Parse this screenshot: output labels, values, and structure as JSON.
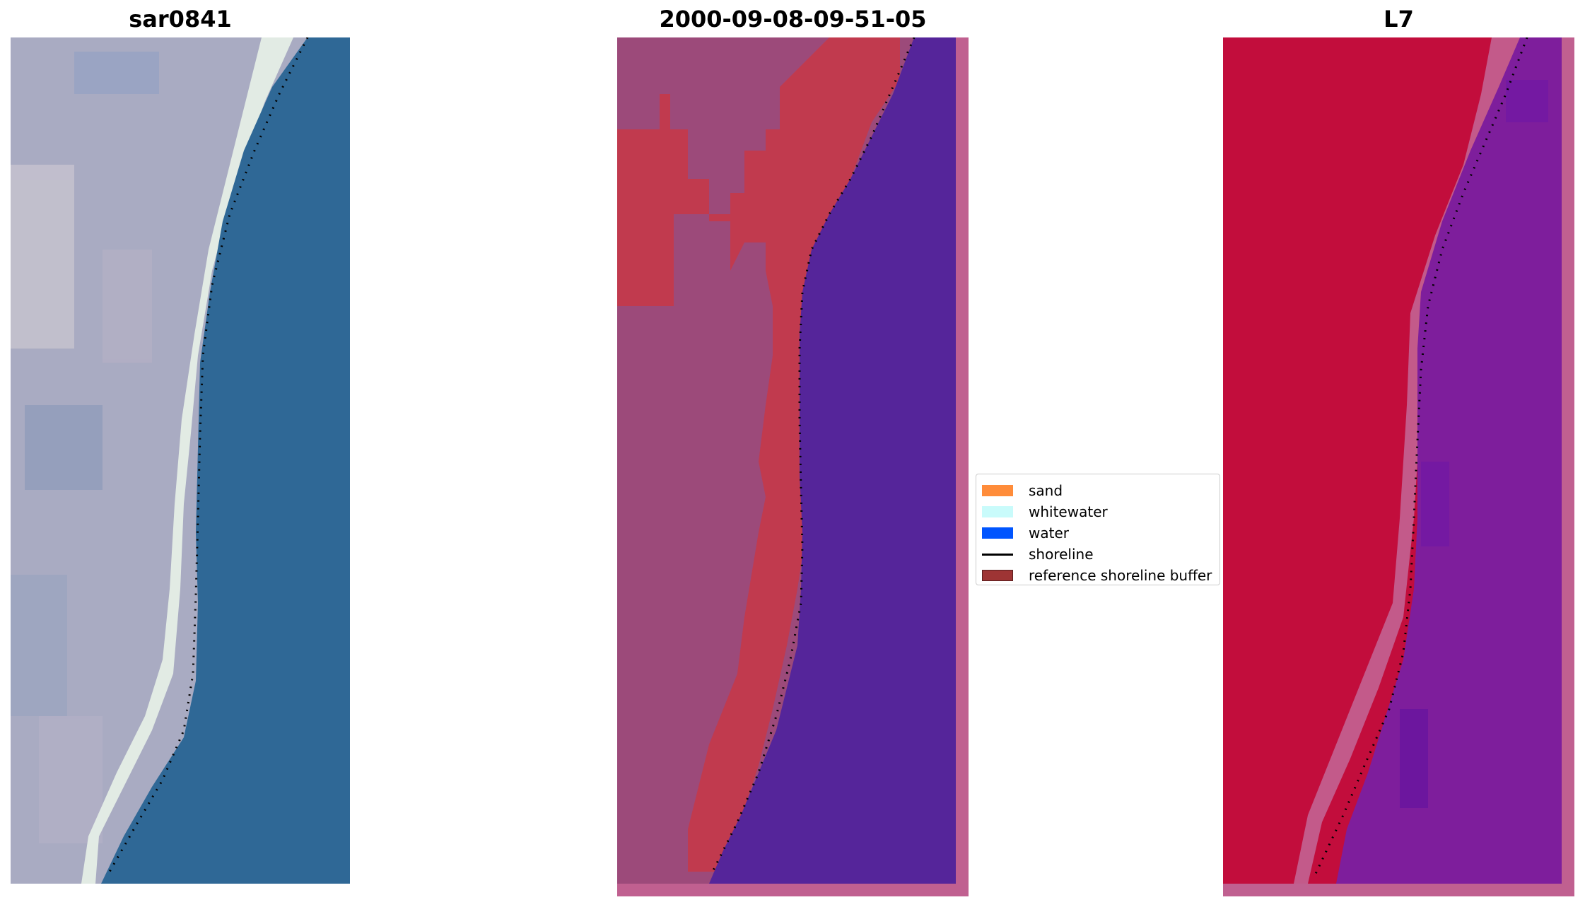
{
  "panels": [
    {
      "title": "sar0841"
    },
    {
      "title": "2000-09-08-09-51-05"
    },
    {
      "title": "L7"
    }
  ],
  "legend": {
    "items": [
      {
        "label": "sand",
        "kind": "patch",
        "color": "#ff8c3a"
      },
      {
        "label": "whitewater",
        "kind": "patch",
        "color": "#c9fbfb"
      },
      {
        "label": "water",
        "kind": "patch",
        "color": "#0055ff"
      },
      {
        "label": "shoreline",
        "kind": "line",
        "color": "#000000"
      },
      {
        "label": "reference shoreline buffer",
        "kind": "patch",
        "color": "#9e3434"
      }
    ]
  },
  "colors": {
    "rgb_land": "#a9abc2",
    "rgb_water": "#2f6896",
    "rgb_whitewater": "#e8f2e8",
    "classified_land": "#9c4a7a",
    "classified_buffer": "#c13a4e",
    "classified_water": "#55259a",
    "classified_border": "#c06090",
    "nir_land": "#c20d3c",
    "nir_water": "#7e1e9c",
    "nir_border": "#c06090"
  }
}
